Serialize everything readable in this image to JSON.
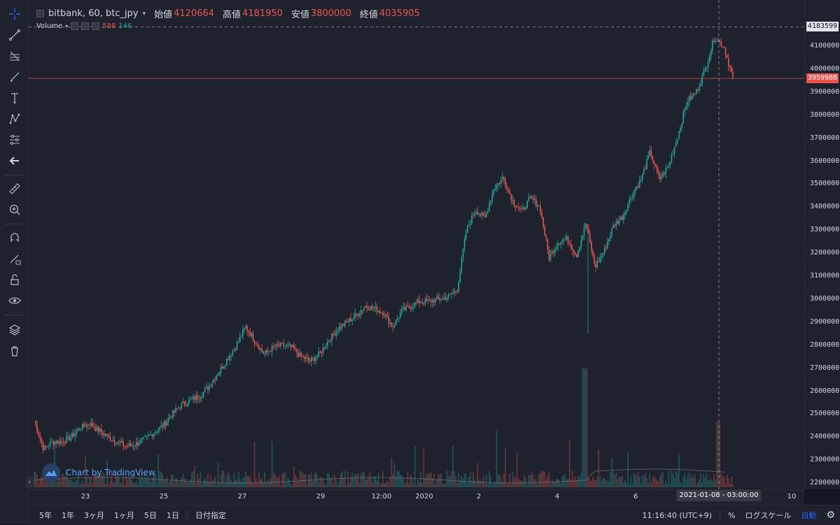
{
  "legend": {
    "symbol": "bitbank, 60, btc_jpy",
    "open_label": "始値",
    "open": "4120664",
    "high_label": "高値",
    "high": "4181950",
    "low_label": "安値",
    "low": "3800000",
    "close_label": "終値",
    "close": "4035905"
  },
  "volume_legend": {
    "label": "Volume",
    "v1": "588",
    "v2": "146"
  },
  "watermark": "Chart by TradingView",
  "price_axis": {
    "ticks": [
      "4100000",
      "4000000",
      "3900000",
      "3800000",
      "3700000",
      "3600000",
      "3500000",
      "3400000",
      "3300000",
      "3200000",
      "3100000",
      "3000000",
      "2900000",
      "2800000",
      "2700000",
      "2600000",
      "2500000",
      "2400000",
      "2300000",
      "2200000"
    ],
    "crosshair_tag": "4183599",
    "last_price_tag": "3959988"
  },
  "time_axis": {
    "ticks": [
      "23",
      "25",
      "27",
      "29",
      "12:00",
      "2020",
      "2",
      "4",
      "6",
      "10"
    ],
    "crosshair_tag": "2021-01-08 - 03:00:00"
  },
  "bottom_bar": {
    "ranges": [
      "5年",
      "1年",
      "3ヶ月",
      "1ヶ月",
      "5日",
      "1日"
    ],
    "date_range": "日付指定",
    "clock": "11:16:40 (UTC+9)",
    "percent": "%",
    "log": "ログスケール",
    "auto": "自動"
  },
  "colors": {
    "up": "#26a69a",
    "down": "#ef5350",
    "background": "#1e222d",
    "crosshair": "#9598a1"
  },
  "icons": [
    "crosshair-icon",
    "trend-line-icon",
    "fib-icon",
    "brush-icon",
    "text-icon",
    "pattern-icon",
    "measure-icon",
    "back-arrow-icon",
    "ruler-icon",
    "zoom-icon",
    "magnet-icon",
    "lock-drawing-icon",
    "unlock-icon",
    "eye-icon",
    "layers-icon",
    "trash-icon"
  ],
  "chart_data": {
    "type": "candlestick",
    "symbol": "btc_jpy",
    "interval": "60",
    "series": [
      {
        "name": "price_close_estimate",
        "values": [
          2470000,
          2350000,
          2380000,
          2380000,
          2400000,
          2440000,
          2460000,
          2430000,
          2400000,
          2380000,
          2360000,
          2370000,
          2390000,
          2420000,
          2450000,
          2500000,
          2540000,
          2560000,
          2580000,
          2620000,
          2680000,
          2740000,
          2800000,
          2880000,
          2820000,
          2760000,
          2790000,
          2800000,
          2790000,
          2750000,
          2730000,
          2760000,
          2820000,
          2870000,
          2900000,
          2930000,
          2970000,
          2960000,
          2940000,
          2880000,
          2950000,
          2970000,
          2990000,
          2990000,
          3000000,
          3010000,
          3040000,
          3300000,
          3390000,
          3350000,
          3480000,
          3530000,
          3430000,
          3380000,
          3440000,
          3400000,
          3180000,
          3250000,
          3260000,
          3190000,
          3330000,
          3140000,
          3210000,
          3320000,
          3360000,
          3450000,
          3520000,
          3640000,
          3520000,
          3580000,
          3710000,
          3860000,
          3900000,
          4000000,
          4140000,
          4100000,
          3960000
        ]
      }
    ],
    "x_start": "2019-12-22",
    "x_end": "2020-01-09",
    "ylim": [
      2180000,
      4220000
    ],
    "last_price": 3959988,
    "crosshair_price": 4183599,
    "volume_max": 588
  }
}
